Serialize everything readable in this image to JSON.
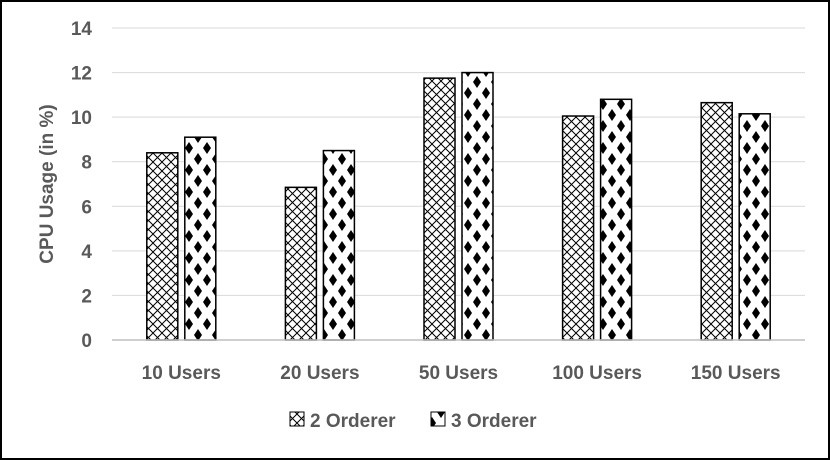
{
  "chart_data": {
    "type": "bar",
    "title": "",
    "xlabel": "",
    "ylabel": "CPU Usage (in %)",
    "ylim": [
      0,
      14
    ],
    "yticks": [
      0,
      2,
      4,
      6,
      8,
      10,
      12,
      14
    ],
    "grid": true,
    "legend_position": "bottom",
    "categories": [
      "10 Users",
      "20 Users",
      "50 Users",
      "100 Users",
      "150 Users"
    ],
    "series": [
      {
        "name": "2 Orderer",
        "pattern": "crosshatch",
        "values": [
          8.4,
          6.85,
          11.75,
          10.05,
          10.65
        ]
      },
      {
        "name": "3 Orderer",
        "pattern": "diamond-dots",
        "values": [
          9.1,
          8.5,
          12.0,
          10.8,
          10.15
        ]
      }
    ],
    "colors": {
      "text": "#595959",
      "bar_stroke": "#000000",
      "grid": "#d9d9d9",
      "axis": "#bfbfbf",
      "frame": "#000000"
    }
  }
}
